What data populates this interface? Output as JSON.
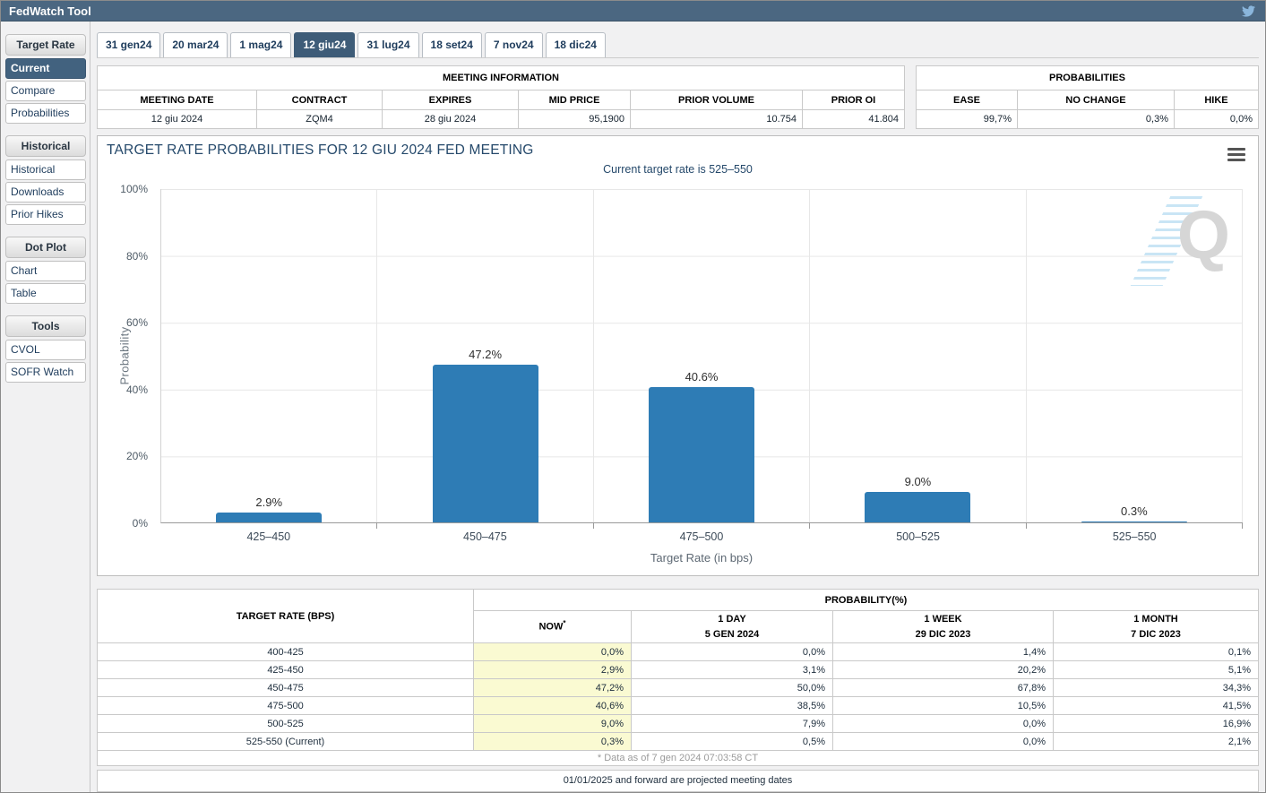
{
  "titlebar": {
    "title": "FedWatch Tool"
  },
  "sidebar": {
    "groups": [
      {
        "header": "Target Rate",
        "items": [
          {
            "label": "Current",
            "selected": true
          },
          {
            "label": "Compare",
            "selected": false
          },
          {
            "label": "Probabilities",
            "selected": false
          }
        ]
      },
      {
        "header": "Historical",
        "items": [
          {
            "label": "Historical",
            "selected": false
          },
          {
            "label": "Downloads",
            "selected": false
          },
          {
            "label": "Prior Hikes",
            "selected": false
          }
        ]
      },
      {
        "header": "Dot Plot",
        "items": [
          {
            "label": "Chart",
            "selected": false
          },
          {
            "label": "Table",
            "selected": false
          }
        ]
      },
      {
        "header": "Tools",
        "items": [
          {
            "label": "CVOL",
            "selected": false
          },
          {
            "label": "SOFR Watch",
            "selected": false
          }
        ]
      }
    ]
  },
  "tabs": {
    "items": [
      {
        "label": "31 gen24",
        "selected": false
      },
      {
        "label": "20 mar24",
        "selected": false
      },
      {
        "label": "1 mag24",
        "selected": false
      },
      {
        "label": "12 giu24",
        "selected": true
      },
      {
        "label": "31 lug24",
        "selected": false
      },
      {
        "label": "18 set24",
        "selected": false
      },
      {
        "label": "7 nov24",
        "selected": false
      },
      {
        "label": "18 dic24",
        "selected": false
      }
    ]
  },
  "meeting_info": {
    "title": "MEETING INFORMATION",
    "columns": [
      "MEETING DATE",
      "CONTRACT",
      "EXPIRES",
      "MID PRICE",
      "PRIOR VOLUME",
      "PRIOR OI"
    ],
    "values": [
      "12 giu 2024",
      "ZQM4",
      "28 giu 2024",
      "95,1900",
      "10.754",
      "41.804"
    ]
  },
  "probabilities_box": {
    "title": "PROBABILITIES",
    "columns": [
      "EASE",
      "NO CHANGE",
      "HIKE"
    ],
    "values": [
      "99,7%",
      "0,3%",
      "0,0%"
    ]
  },
  "chart_data": {
    "type": "bar",
    "title": "TARGET RATE PROBABILITIES FOR 12 GIU 2024 FED MEETING",
    "subtitle": "Current target rate is 525–550",
    "categories": [
      "425–450",
      "450–475",
      "475–500",
      "500–525",
      "525–550"
    ],
    "values": [
      2.9,
      47.2,
      40.6,
      9.0,
      0.3
    ],
    "point_labels": [
      "2.9%",
      "47.2%",
      "40.6%",
      "9.0%",
      "0.3%"
    ],
    "xlabel": "Target Rate (in bps)",
    "ylabel": "Probability",
    "ylim": [
      0,
      100
    ],
    "yticks": [
      "0%",
      "20%",
      "40%",
      "60%",
      "80%",
      "100%"
    ],
    "grid": true,
    "legend": false,
    "bar_color": "#2e7cb5"
  },
  "bottom_table": {
    "rate_header": "TARGET RATE (BPS)",
    "group_header": "PROBABILITY(%)",
    "col_headers": [
      {
        "line1": "NOW",
        "sup": "*",
        "line2": ""
      },
      {
        "line1": "1 DAY",
        "sup": "",
        "line2": "5 GEN 2024"
      },
      {
        "line1": "1 WEEK",
        "sup": "",
        "line2": "29 DIC 2023"
      },
      {
        "line1": "1 MONTH",
        "sup": "",
        "line2": "7 DIC 2023"
      }
    ],
    "rows": [
      {
        "rate": "400-425",
        "now": "0,0%",
        "day": "0,0%",
        "week": "1,4%",
        "month": "0,1%"
      },
      {
        "rate": "425-450",
        "now": "2,9%",
        "day": "3,1%",
        "week": "20,2%",
        "month": "5,1%"
      },
      {
        "rate": "450-475",
        "now": "47,2%",
        "day": "50,0%",
        "week": "67,8%",
        "month": "34,3%"
      },
      {
        "rate": "475-500",
        "now": "40,6%",
        "day": "38,5%",
        "week": "10,5%",
        "month": "41,5%"
      },
      {
        "rate": "500-525",
        "now": "9,0%",
        "day": "7,9%",
        "week": "0,0%",
        "month": "16,9%"
      },
      {
        "rate": "525-550 (Current)",
        "now": "0,3%",
        "day": "0,5%",
        "week": "0,0%",
        "month": "2,1%"
      }
    ],
    "footnote": "* Data as of 7 gen 2024 07:03:58 CT"
  },
  "footer": {
    "note": "01/01/2025 and forward are projected meeting dates"
  },
  "colors": {
    "header_bg": "#4b6781",
    "accent": "#3e5c78",
    "bar": "#2e7cb5",
    "now_column": "#fafad2"
  }
}
